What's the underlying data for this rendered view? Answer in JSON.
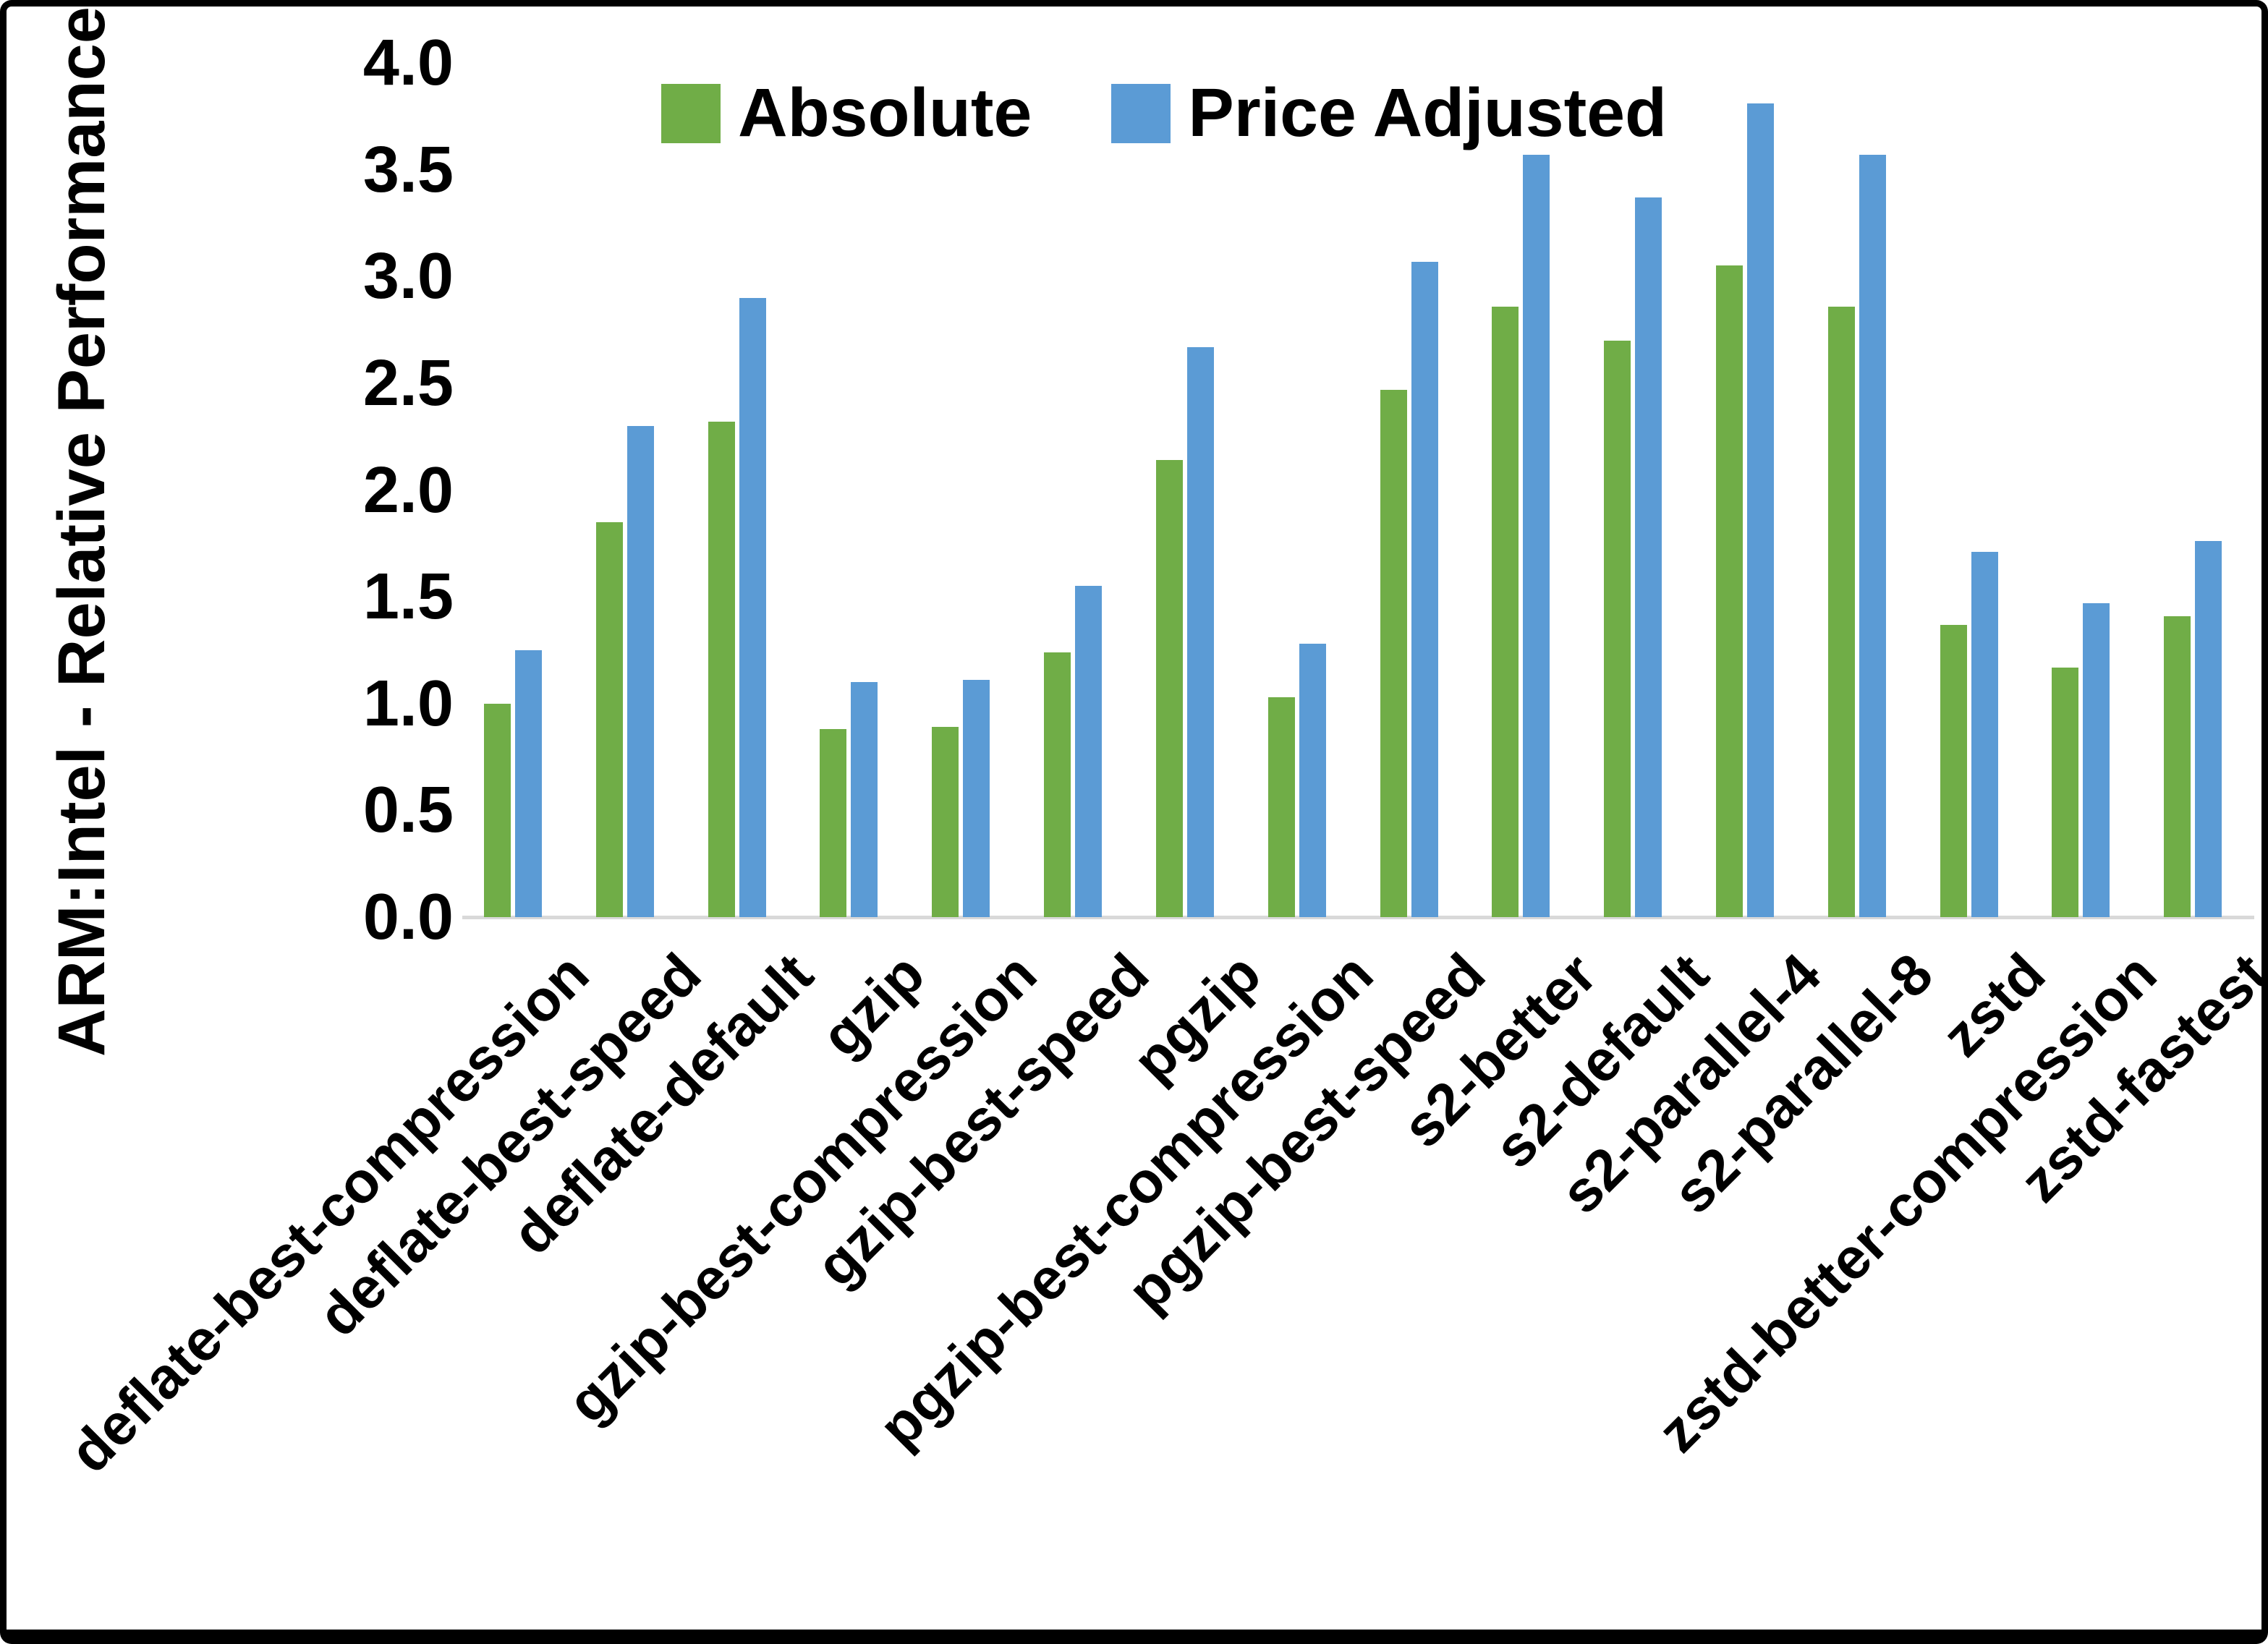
{
  "chart_data": {
    "type": "bar",
    "title": "",
    "ylabel": "ARM:Intel - Relative Performance",
    "xlabel": "",
    "ylim": [
      0.0,
      4.0
    ],
    "y_ticks": [
      "4.0",
      "3.5",
      "3.0",
      "2.5",
      "2.0",
      "1.5",
      "1.0",
      "0.5",
      "0.0"
    ],
    "grid": false,
    "legend_position": "top-center",
    "axis_line_color": "#d9d9d9",
    "categories": [
      "deflate-best-compression",
      "deflate-best-speed",
      "deflate-default",
      "gzip",
      "gzip-best-compression",
      "gzip-best-speed",
      "pgzip",
      "pgzip-best-compression",
      "pgzip-best-speed",
      "s2-better",
      "s2-default",
      "s2-parallel-4",
      "s2-parallel-8",
      "zstd",
      "zstd-better-compression",
      "zstd-fastest"
    ],
    "series": [
      {
        "name": "Absolute",
        "color": "#70AD47",
        "values": [
          1.0,
          1.85,
          2.32,
          0.88,
          0.89,
          1.24,
          2.14,
          1.03,
          2.47,
          2.86,
          2.7,
          3.05,
          2.86,
          1.37,
          1.17,
          1.41
        ]
      },
      {
        "name": "Price Adjusted",
        "color": "#5B9BD5",
        "values": [
          1.25,
          2.3,
          2.9,
          1.1,
          1.11,
          1.55,
          2.67,
          1.28,
          3.07,
          3.57,
          3.37,
          3.81,
          3.57,
          1.71,
          1.47,
          1.76
        ]
      }
    ]
  }
}
